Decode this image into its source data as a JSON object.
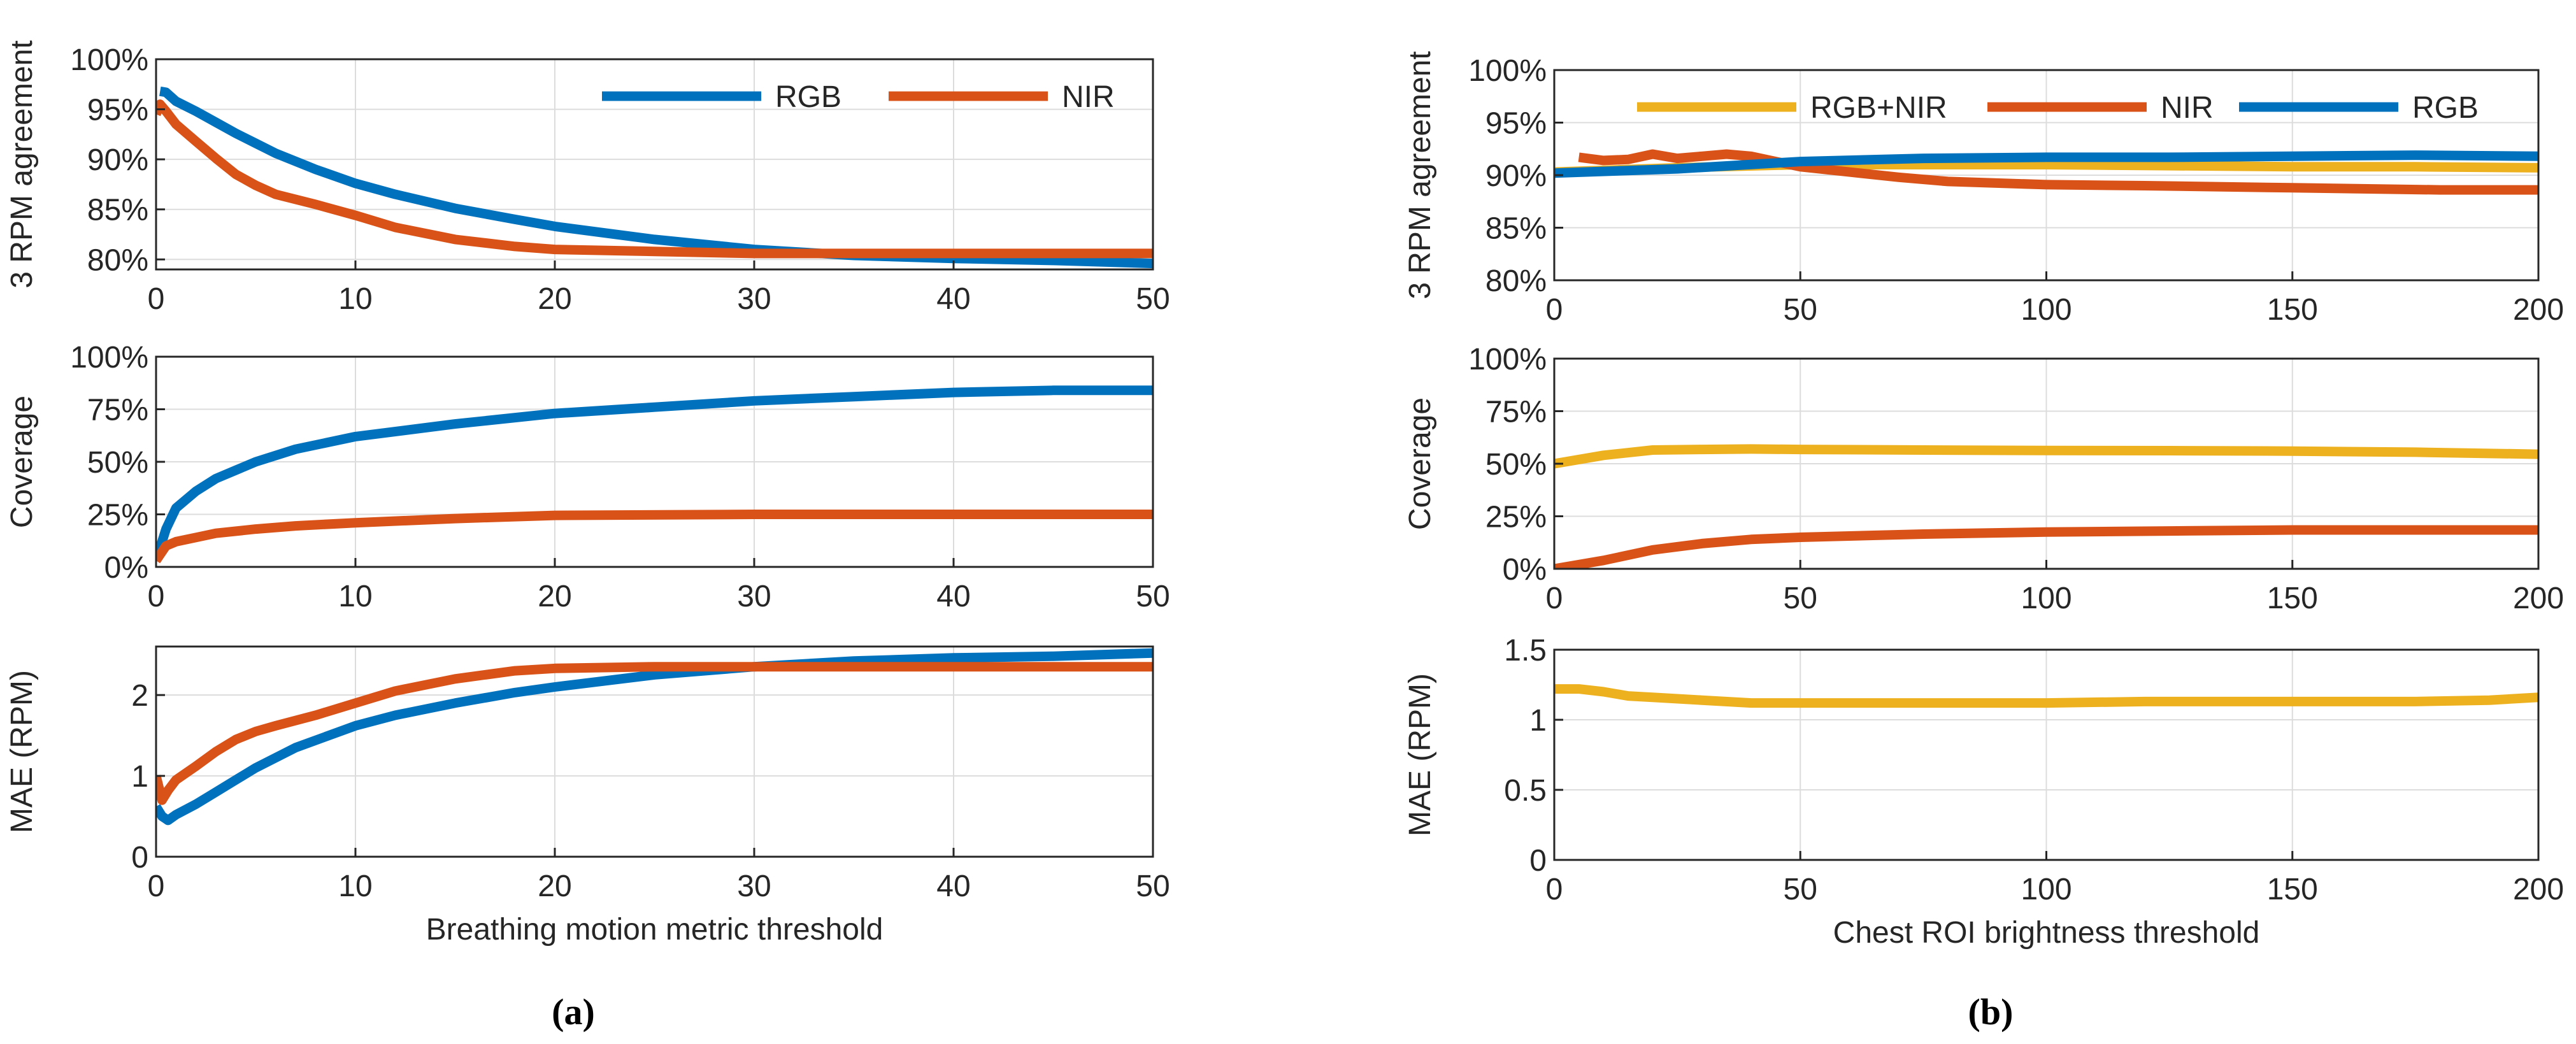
{
  "colors": {
    "rgb": "#0072BD",
    "nir": "#D95319",
    "rgbnir": "#EDB120",
    "grid": "#dcdcdc",
    "axis": "#262626"
  },
  "sublabels": [
    "(a)",
    "(b)"
  ],
  "chart_data": [
    {
      "id": "a1",
      "type": "line",
      "ylabel": "3 RPM agreement",
      "xlabel": "",
      "xlim": [
        0,
        50
      ],
      "ylim": [
        79,
        100
      ],
      "xticks": [
        0,
        10,
        20,
        30,
        40,
        50
      ],
      "yticks": [
        80,
        85,
        90,
        95,
        100
      ],
      "yticklabels": [
        "80%",
        "85%",
        "90%",
        "95%",
        "100%"
      ],
      "legend": {
        "placement": "top-right",
        "entries": [
          "RGB",
          "NIR"
        ]
      },
      "series": [
        {
          "name": "RGB",
          "color": "rgb",
          "x": [
            0.2,
            0.5,
            1,
            2,
            3,
            4,
            5,
            6,
            8,
            10,
            12,
            15,
            18,
            20,
            25,
            30,
            35,
            40,
            45,
            50
          ],
          "y": [
            96.8,
            96.7,
            95.8,
            94.8,
            93.7,
            92.6,
            91.6,
            90.6,
            89.0,
            87.6,
            86.5,
            85.1,
            84.0,
            83.3,
            82.0,
            81.0,
            80.4,
            80.1,
            79.9,
            79.6
          ]
        },
        {
          "name": "NIR",
          "color": "nir",
          "x": [
            0,
            0.2,
            0.5,
            1,
            2,
            3,
            4,
            5,
            6,
            8,
            10,
            12,
            15,
            18,
            20,
            25,
            30,
            35,
            40,
            45,
            50
          ],
          "y": [
            94.5,
            95.5,
            94.8,
            93.5,
            91.8,
            90.1,
            88.5,
            87.4,
            86.5,
            85.5,
            84.4,
            83.2,
            82.0,
            81.3,
            81.0,
            80.8,
            80.6,
            80.6,
            80.6,
            80.6,
            80.6
          ]
        }
      ]
    },
    {
      "id": "a2",
      "type": "line",
      "ylabel": "Coverage",
      "xlabel": "",
      "xlim": [
        0,
        50
      ],
      "ylim": [
        0,
        100
      ],
      "xticks": [
        0,
        10,
        20,
        30,
        40,
        50
      ],
      "yticks": [
        0,
        25,
        50,
        75,
        100
      ],
      "yticklabels": [
        "0%",
        "25%",
        "50%",
        "75%",
        "100%"
      ],
      "series": [
        {
          "name": "RGB",
          "color": "rgb",
          "x": [
            0,
            0.5,
            1,
            2,
            3,
            4,
            5,
            7,
            10,
            15,
            20,
            25,
            30,
            35,
            40,
            45,
            50
          ],
          "y": [
            3,
            18,
            28,
            36,
            42,
            46,
            50,
            56,
            62,
            68,
            73,
            76,
            79,
            81,
            83,
            84,
            84
          ]
        },
        {
          "name": "NIR",
          "color": "nir",
          "x": [
            0,
            0.5,
            1,
            2,
            3,
            5,
            7,
            10,
            15,
            20,
            30,
            40,
            50
          ],
          "y": [
            3,
            10,
            12,
            14,
            16,
            18,
            19.5,
            21,
            23,
            24.5,
            25,
            25,
            25
          ]
        }
      ]
    },
    {
      "id": "a3",
      "type": "line",
      "ylabel": "MAE (RPM)",
      "xlabel": "Breathing motion metric threshold",
      "xlim": [
        0,
        50
      ],
      "ylim": [
        0,
        2.6
      ],
      "xticks": [
        0,
        10,
        20,
        30,
        40,
        50
      ],
      "yticks": [
        0,
        1,
        2
      ],
      "yticklabels": [
        "0",
        "1",
        "2"
      ],
      "series": [
        {
          "name": "RGB",
          "color": "rgb",
          "x": [
            0,
            0.3,
            0.6,
            1,
            2,
            3,
            4,
            5,
            7,
            10,
            12,
            15,
            18,
            20,
            25,
            30,
            35,
            40,
            45,
            50
          ],
          "y": [
            0.62,
            0.5,
            0.45,
            0.52,
            0.65,
            0.8,
            0.95,
            1.1,
            1.35,
            1.62,
            1.75,
            1.9,
            2.03,
            2.1,
            2.25,
            2.35,
            2.42,
            2.46,
            2.48,
            2.52
          ]
        },
        {
          "name": "NIR",
          "color": "nir",
          "x": [
            0,
            0.3,
            0.6,
            1,
            2,
            3,
            4,
            5,
            6,
            8,
            10,
            12,
            15,
            18,
            20,
            25,
            30,
            35,
            40,
            45,
            50
          ],
          "y": [
            1.0,
            0.7,
            0.82,
            0.95,
            1.12,
            1.3,
            1.45,
            1.55,
            1.62,
            1.75,
            1.9,
            2.05,
            2.2,
            2.3,
            2.33,
            2.35,
            2.35,
            2.35,
            2.35,
            2.35,
            2.35
          ]
        }
      ]
    },
    {
      "id": "b1",
      "type": "line",
      "ylabel": "3 RPM agreement",
      "xlabel": "",
      "xlim": [
        0,
        200
      ],
      "ylim": [
        80,
        100
      ],
      "xticks": [
        0,
        50,
        100,
        150,
        200
      ],
      "yticks": [
        80,
        85,
        90,
        95,
        100
      ],
      "yticklabels": [
        "80%",
        "85%",
        "90%",
        "95%",
        "100%"
      ],
      "legend": {
        "placement": "top",
        "entries": [
          "RGB+NIR",
          "NIR",
          "RGB"
        ]
      },
      "series": [
        {
          "name": "RGB+NIR",
          "color": "rgbnir",
          "x": [
            0,
            25,
            50,
            75,
            100,
            125,
            150,
            175,
            200
          ],
          "y": [
            90.3,
            90.7,
            91.0,
            91.0,
            91.0,
            90.9,
            90.8,
            90.8,
            90.7
          ]
        },
        {
          "name": "NIR",
          "color": "nir",
          "x": [
            5,
            10,
            15,
            20,
            25,
            30,
            35,
            40,
            45,
            50,
            60,
            70,
            80,
            100,
            120,
            150,
            180,
            200
          ],
          "y": [
            91.7,
            91.4,
            91.5,
            92.0,
            91.6,
            91.8,
            92.0,
            91.8,
            91.3,
            90.8,
            90.3,
            89.8,
            89.4,
            89.1,
            89.0,
            88.8,
            88.6,
            88.6
          ]
        },
        {
          "name": "RGB",
          "color": "rgb",
          "x": [
            0,
            25,
            50,
            75,
            100,
            125,
            150,
            175,
            200
          ],
          "y": [
            90.2,
            90.6,
            91.3,
            91.6,
            91.7,
            91.7,
            91.8,
            91.9,
            91.8
          ]
        }
      ]
    },
    {
      "id": "b2",
      "type": "line",
      "ylabel": "Coverage",
      "xlabel": "",
      "xlim": [
        0,
        200
      ],
      "ylim": [
        0,
        100
      ],
      "xticks": [
        0,
        50,
        100,
        150,
        200
      ],
      "yticks": [
        0,
        25,
        50,
        75,
        100
      ],
      "yticklabels": [
        "0%",
        "25%",
        "50%",
        "75%",
        "100%"
      ],
      "series": [
        {
          "name": "RGB+NIR",
          "color": "rgbnir",
          "x": [
            0,
            10,
            20,
            30,
            40,
            50,
            75,
            100,
            125,
            150,
            175,
            200
          ],
          "y": [
            50,
            54,
            56.5,
            56.8,
            57,
            56.8,
            56.5,
            56.3,
            56.2,
            56,
            55.5,
            54.5
          ]
        },
        {
          "name": "NIR",
          "color": "nir",
          "x": [
            0,
            10,
            20,
            30,
            40,
            50,
            75,
            100,
            125,
            150,
            175,
            200
          ],
          "y": [
            0,
            4,
            9,
            12,
            14,
            15,
            16.5,
            17.5,
            18,
            18.5,
            18.5,
            18.5
          ]
        }
      ]
    },
    {
      "id": "b3",
      "type": "line",
      "ylabel": "MAE (RPM)",
      "xlabel": "Chest ROI brightness threshold",
      "xlim": [
        0,
        200
      ],
      "ylim": [
        0,
        1.5
      ],
      "xticks": [
        0,
        50,
        100,
        150,
        200
      ],
      "yticks": [
        0,
        0.5,
        1,
        1.5
      ],
      "yticklabels": [
        "0",
        "0.5",
        "1",
        "1.5"
      ],
      "series": [
        {
          "name": "RGB+NIR",
          "color": "rgbnir",
          "x": [
            0,
            5,
            10,
            15,
            20,
            30,
            40,
            50,
            60,
            80,
            100,
            120,
            150,
            175,
            190,
            200
          ],
          "y": [
            1.22,
            1.22,
            1.2,
            1.17,
            1.16,
            1.14,
            1.12,
            1.12,
            1.12,
            1.12,
            1.12,
            1.13,
            1.13,
            1.13,
            1.14,
            1.16
          ]
        }
      ]
    }
  ]
}
